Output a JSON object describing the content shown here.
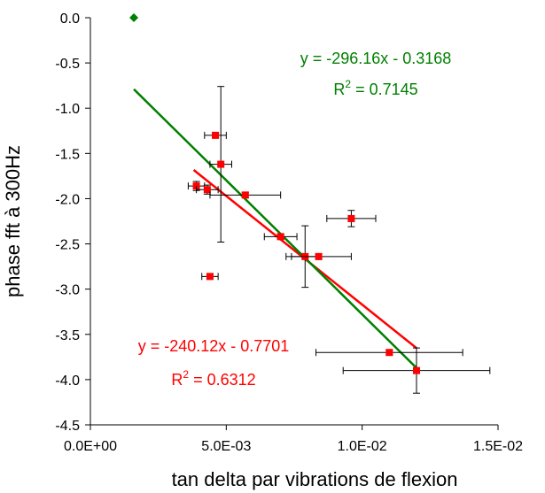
{
  "chart_data": {
    "type": "scatter",
    "xlabel": "tan delta par vibrations de flexion",
    "ylabel": "phase fft à 300Hz",
    "xlim": [
      0,
      0.015
    ],
    "ylim": [
      -4.5,
      0
    ],
    "x_ticks": [
      0,
      0.005,
      0.01,
      0.015
    ],
    "x_tick_labels": [
      "0.0E+00",
      "5.0E-03",
      "1.0E-02",
      "1.5E-02"
    ],
    "y_ticks": [
      0,
      -0.5,
      -1,
      -1.5,
      -2,
      -2.5,
      -3,
      -3.5,
      -4,
      -4.5
    ],
    "y_tick_labels": [
      "0.0",
      "-0.5",
      "-1.0",
      "-1.5",
      "-2.0",
      "-2.5",
      "-3.0",
      "-3.5",
      "-4.0",
      "-4.5"
    ],
    "grid": false,
    "colors": {
      "red": "#ff0000",
      "green": "#008000",
      "errorbar": "#000000"
    },
    "series": [
      {
        "color": "red",
        "marker": "square",
        "points": [
          {
            "x": 0.0039,
            "y": -1.86,
            "xerr": 0.0003,
            "yerr": 0.05
          },
          {
            "x": 0.0043,
            "y": -1.9,
            "xerr": 0.0004,
            "yerr": 0.05
          },
          {
            "x": 0.0044,
            "y": -2.86,
            "xerr": 0.0003,
            "yerr": 0.03
          },
          {
            "x": 0.0046,
            "y": -1.3,
            "xerr": 0.0004,
            "yerr": 0.03
          },
          {
            "x": 0.0048,
            "y": -1.62,
            "xerr": 0.0004,
            "yerr": 0.86
          },
          {
            "x": 0.0057,
            "y": -1.96,
            "xerr": 0.0013,
            "yerr": 0.03
          },
          {
            "x": 0.007,
            "y": -2.42,
            "xerr": 0.0006,
            "yerr": 0.03
          },
          {
            "x": 0.0079,
            "y": -2.64,
            "xerr": 0.0005,
            "yerr": 0.34
          },
          {
            "x": 0.0084,
            "y": -2.64,
            "xerr": 0.0012,
            "yerr": 0.03
          },
          {
            "x": 0.0096,
            "y": -2.22,
            "xerr": 0.0009,
            "yerr": 0.09
          },
          {
            "x": 0.011,
            "y": -3.7,
            "xerr": 0.0027,
            "yerr": 0.03
          },
          {
            "x": 0.012,
            "y": -3.9,
            "xerr": 0.0027,
            "yerr": 0.25
          }
        ]
      },
      {
        "color": "green",
        "marker": "diamond",
        "points": [
          {
            "x": 0.0016,
            "y": 0.0
          }
        ]
      }
    ],
    "trendlines": [
      {
        "color": "red",
        "slope": -240.12,
        "intercept": -0.7701,
        "x_range": [
          0.0038,
          0.012
        ],
        "equation": "y = -240.12x - 0.7701",
        "r2_label": "R",
        "r2_value": "= 0.6312"
      },
      {
        "color": "green",
        "slope": -296.16,
        "intercept": -0.3168,
        "x_range": [
          0.0016,
          0.012
        ],
        "equation": "y = -296.16x - 0.3168",
        "r2_label": "R",
        "r2_value": "= 0.7145"
      }
    ]
  }
}
